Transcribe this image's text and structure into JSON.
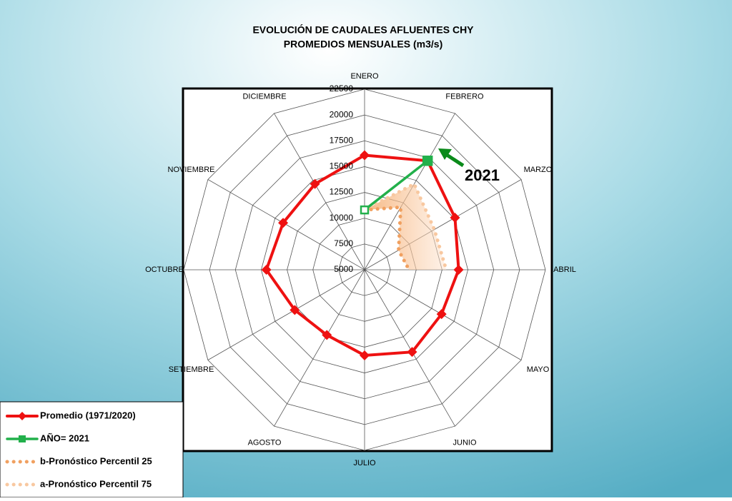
{
  "chart_data": {
    "type": "radar",
    "title": "EVOLUCIÓN DE CAUDALES AFLUENTES CHY",
    "subtitle": "PROMEDIOS MENSUALES (m3/s)",
    "categories": [
      "ENERO",
      "FEBRERO",
      "MARZO",
      "ABRIL",
      "MAYO",
      "JUNIO",
      "JULIO",
      "AGOSTO",
      "SETIEMBRE",
      "OCTUBRE",
      "NOVIEMBRE",
      "DICIEMBRE"
    ],
    "ylim": [
      5000,
      22500
    ],
    "yticks": [
      5000,
      7500,
      10000,
      12500,
      15000,
      17500,
      20000,
      22500
    ],
    "grid": true,
    "legend": "lower left",
    "annotations": [
      "2021"
    ],
    "series": [
      {
        "name": "Promedio (1971/2020)",
        "color": "#ee1111",
        "values": [
          16100,
          17200,
          15100,
          14100,
          13600,
          14200,
          13300,
          12300,
          12800,
          14500,
          14100,
          14600
        ]
      },
      {
        "name": "AÑO= 2021",
        "color": "#22b04b",
        "values": [
          10800,
          17200,
          null,
          null,
          null,
          null,
          null,
          null,
          null,
          null,
          null,
          null
        ]
      },
      {
        "name": "b-Pronóstico Percentil 25",
        "color": "#f0a060",
        "values": [
          10800,
          12000,
          8800,
          9300,
          null,
          null,
          null,
          null,
          null,
          null,
          null,
          null
        ]
      },
      {
        "name": "a-Pronóstico Percentil 75",
        "color": "#f8c8a0",
        "values": [
          10800,
          14600,
          12800,
          12900,
          null,
          null,
          null,
          null,
          null,
          null,
          null,
          null
        ]
      }
    ]
  }
}
